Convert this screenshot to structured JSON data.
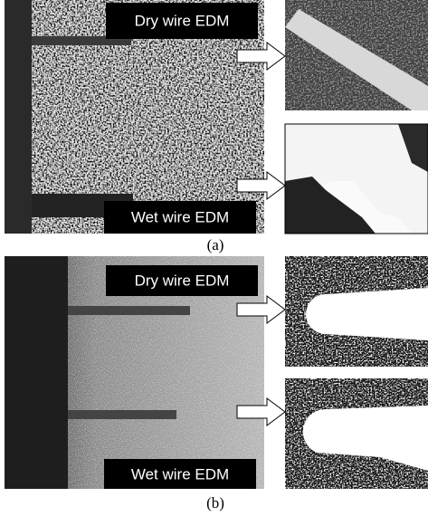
{
  "figure": {
    "panels": [
      {
        "label": "(a)",
        "top_label": "Dry wire EDM",
        "bottom_label": "Wet wire EDM"
      },
      {
        "label": "(b)",
        "top_label": "Dry wire EDM",
        "bottom_label": "Wet wire EDM"
      }
    ]
  }
}
